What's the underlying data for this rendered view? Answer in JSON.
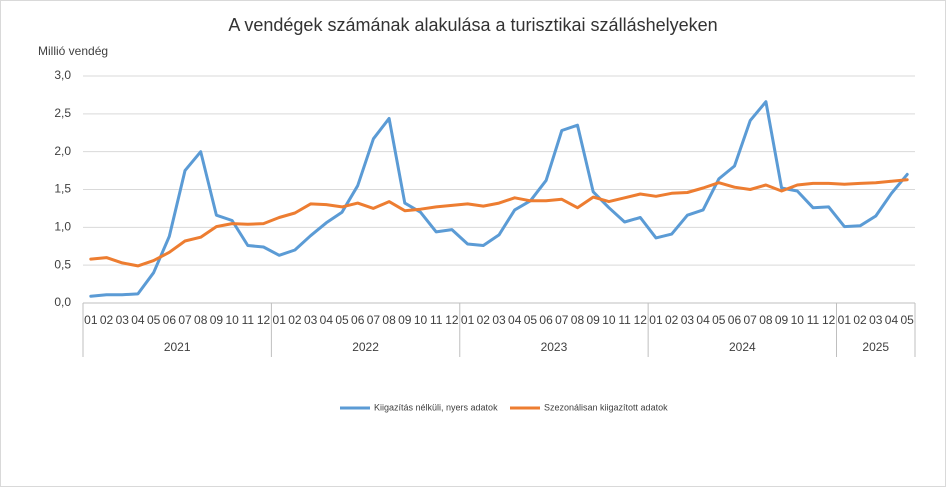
{
  "chart_data": {
    "type": "line",
    "title": "A vendégek számának alakulása a turisztikai szálláshelyeken",
    "y_label": "Millió vendég",
    "groups": [
      {
        "label": "2021",
        "months": [
          "01",
          "02",
          "03",
          "04",
          "05",
          "06",
          "07",
          "08",
          "09",
          "10",
          "11",
          "12"
        ]
      },
      {
        "label": "2022",
        "months": [
          "01",
          "02",
          "03",
          "04",
          "05",
          "06",
          "07",
          "08",
          "09",
          "10",
          "11",
          "12"
        ]
      },
      {
        "label": "2023",
        "months": [
          "01",
          "02",
          "03",
          "04",
          "05",
          "06",
          "07",
          "08",
          "09",
          "10",
          "11",
          "12"
        ]
      },
      {
        "label": "2024",
        "months": [
          "01",
          "02",
          "03",
          "04",
          "05",
          "06",
          "07",
          "08",
          "09",
          "10",
          "11",
          "12"
        ]
      },
      {
        "label": "2025",
        "months": [
          "01",
          "02",
          "03",
          "04",
          "05"
        ]
      }
    ],
    "series": [
      {
        "name": "Kiigazítás nélküli, nyers adatok",
        "color": "#5b9bd5",
        "values": [
          0.09,
          0.11,
          0.11,
          0.12,
          0.4,
          0.88,
          1.75,
          2.0,
          1.16,
          1.09,
          0.76,
          0.74,
          0.63,
          0.7,
          0.89,
          1.06,
          1.2,
          1.55,
          2.17,
          2.44,
          1.32,
          1.2,
          0.94,
          0.97,
          0.78,
          0.76,
          0.9,
          1.23,
          1.35,
          1.62,
          2.28,
          2.35,
          1.47,
          1.26,
          1.07,
          1.13,
          0.86,
          0.91,
          1.16,
          1.23,
          1.64,
          1.81,
          2.41,
          2.66,
          1.52,
          1.48,
          1.26,
          1.27,
          1.01,
          1.02,
          1.15,
          1.45,
          1.7
        ]
      },
      {
        "name": "Szezonálisan kiigazított adatok",
        "color": "#ed7d31",
        "values": [
          0.58,
          0.6,
          0.53,
          0.49,
          0.56,
          0.67,
          0.82,
          0.87,
          1.01,
          1.05,
          1.04,
          1.05,
          1.13,
          1.19,
          1.31,
          1.3,
          1.27,
          1.32,
          1.25,
          1.34,
          1.22,
          1.24,
          1.27,
          1.29,
          1.31,
          1.28,
          1.32,
          1.39,
          1.35,
          1.35,
          1.37,
          1.26,
          1.4,
          1.34,
          1.39,
          1.44,
          1.41,
          1.45,
          1.46,
          1.52,
          1.59,
          1.53,
          1.5,
          1.56,
          1.48,
          1.56,
          1.58,
          1.58,
          1.57,
          1.58,
          1.59,
          1.61,
          1.63
        ]
      }
    ],
    "ylim": [
      0,
      3
    ],
    "yticks": [
      {
        "value": 0,
        "label": "0,0"
      },
      {
        "value": 0.5,
        "label": "0,5"
      },
      {
        "value": 1,
        "label": "1,0"
      },
      {
        "value": 1.5,
        "label": "1,5"
      },
      {
        "value": 2,
        "label": "2,0"
      },
      {
        "value": 2.5,
        "label": "2,5"
      },
      {
        "value": 3,
        "label": "3,0"
      }
    ],
    "grid": true
  }
}
